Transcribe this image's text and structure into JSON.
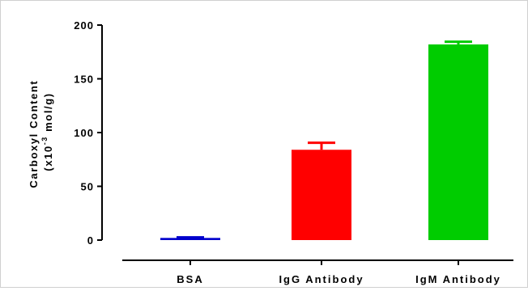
{
  "chart_data": {
    "type": "bar",
    "title": "",
    "xlabel": "",
    "ylabel_line1": "Carboxyl Content",
    "ylabel_line2_prefix": "(x10",
    "ylabel_line2_exp": "-3",
    "ylabel_line2_suffix": " mol/g)",
    "categories": [
      "BSA",
      "IgG Antibody",
      "IgM Antibody"
    ],
    "values": [
      2,
      84,
      182
    ],
    "errors": [
      0.5,
      6.5,
      2.5
    ],
    "colors": [
      "#0000cc",
      "#ff0000",
      "#00cc00"
    ],
    "ylim": [
      0,
      200
    ],
    "yticks": [
      0,
      50,
      100,
      150,
      200
    ],
    "ytick_labels": [
      "0",
      "50",
      "100",
      "150",
      "200"
    ],
    "grid": false,
    "legend": "none"
  }
}
